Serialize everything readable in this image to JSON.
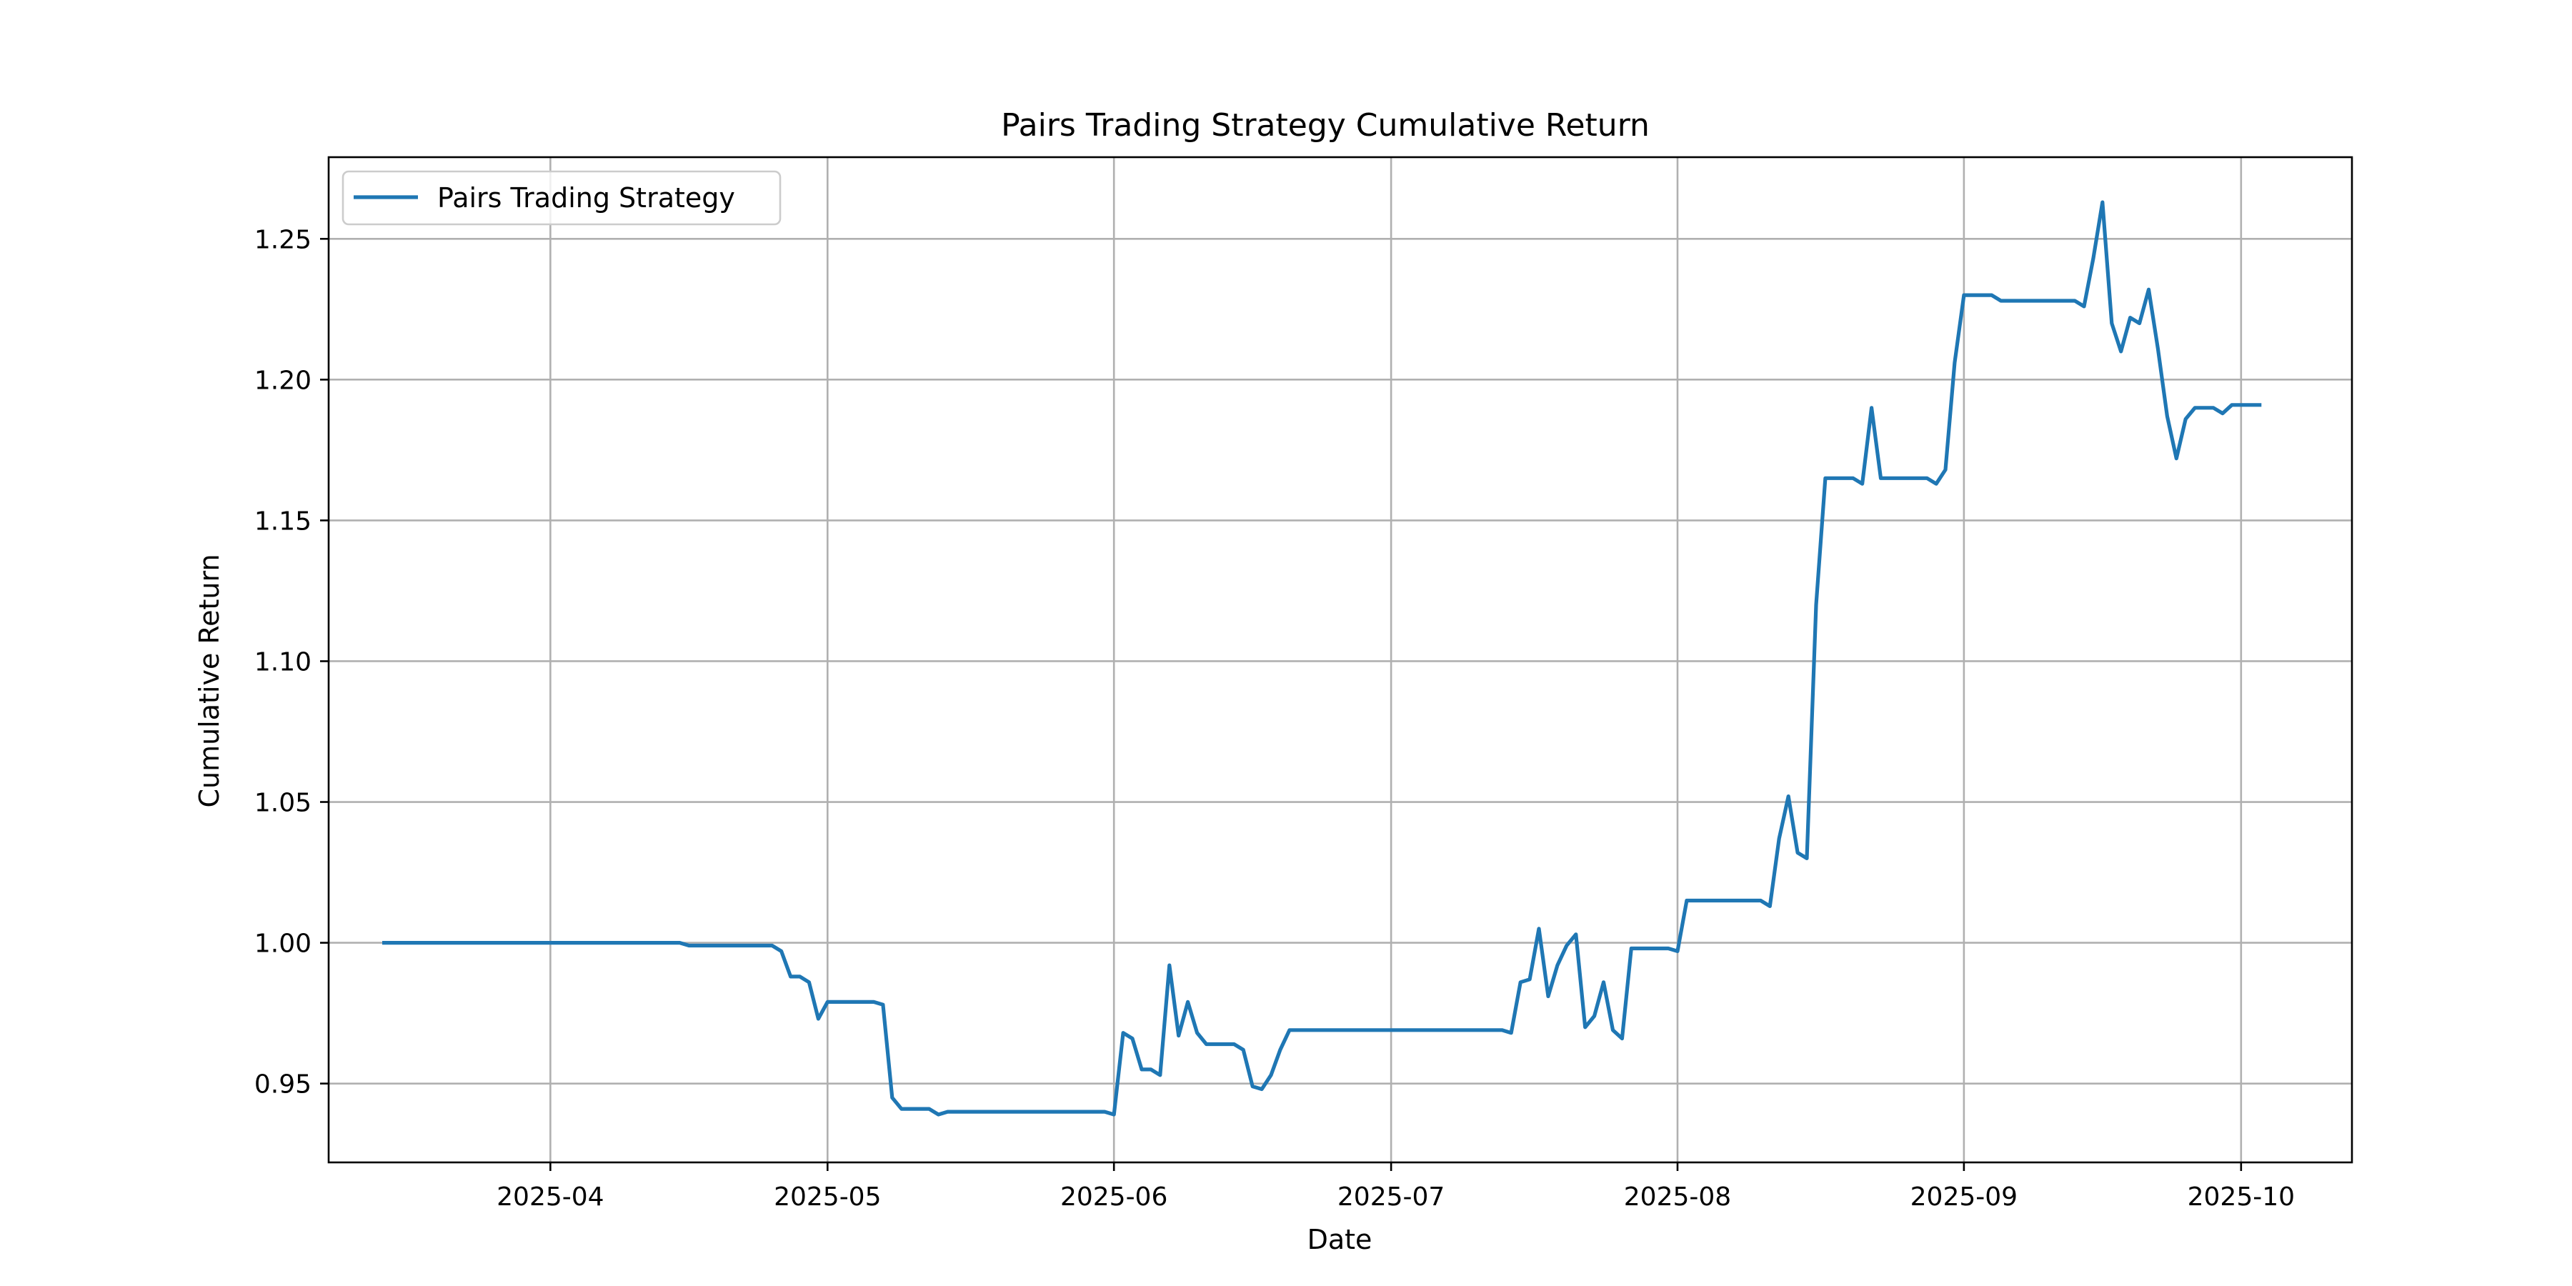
{
  "chart_data": {
    "type": "line",
    "title": "Pairs Trading Strategy Cumulative Return",
    "xlabel": "Date",
    "ylabel": "Cumulative Return",
    "xlim": [
      "2025-03-08",
      "2025-10-13"
    ],
    "ylim": [
      0.922,
      1.279
    ],
    "x_ticks": [
      {
        "date": "2025-04-01",
        "label": "2025-04"
      },
      {
        "date": "2025-05-01",
        "label": "2025-05"
      },
      {
        "date": "2025-06-01",
        "label": "2025-06"
      },
      {
        "date": "2025-07-01",
        "label": "2025-07"
      },
      {
        "date": "2025-08-01",
        "label": "2025-08"
      },
      {
        "date": "2025-09-01",
        "label": "2025-09"
      },
      {
        "date": "2025-10-01",
        "label": "2025-10"
      }
    ],
    "y_ticks": [
      0.95,
      1.0,
      1.05,
      1.1,
      1.15,
      1.2,
      1.25
    ],
    "y_tick_labels": [
      "0.95",
      "1.00",
      "1.05",
      "1.10",
      "1.15",
      "1.20",
      "1.25"
    ],
    "grid": true,
    "legend_position": "upper-left",
    "line_color": "#1f77b4",
    "series": [
      {
        "name": "Pairs Trading Strategy",
        "points": [
          [
            "2025-03-14",
            1.0
          ],
          [
            "2025-03-31",
            1.0
          ],
          [
            "2025-04-15",
            1.0
          ],
          [
            "2025-04-16",
            0.999
          ],
          [
            "2025-04-25",
            0.999
          ],
          [
            "2025-04-26",
            0.997
          ],
          [
            "2025-04-27",
            0.988
          ],
          [
            "2025-04-28",
            0.988
          ],
          [
            "2025-04-29",
            0.986
          ],
          [
            "2025-04-30",
            0.973
          ],
          [
            "2025-05-01",
            0.979
          ],
          [
            "2025-05-06",
            0.979
          ],
          [
            "2025-05-07",
            0.978
          ],
          [
            "2025-05-08",
            0.945
          ],
          [
            "2025-05-09",
            0.941
          ],
          [
            "2025-05-12",
            0.941
          ],
          [
            "2025-05-13",
            0.939
          ],
          [
            "2025-05-14",
            0.94
          ],
          [
            "2025-05-31",
            0.94
          ],
          [
            "2025-06-01",
            0.939
          ],
          [
            "2025-06-02",
            0.968
          ],
          [
            "2025-06-03",
            0.966
          ],
          [
            "2025-06-04",
            0.955
          ],
          [
            "2025-06-05",
            0.955
          ],
          [
            "2025-06-06",
            0.953
          ],
          [
            "2025-06-07",
            0.992
          ],
          [
            "2025-06-08",
            0.967
          ],
          [
            "2025-06-09",
            0.979
          ],
          [
            "2025-06-10",
            0.968
          ],
          [
            "2025-06-11",
            0.964
          ],
          [
            "2025-06-14",
            0.964
          ],
          [
            "2025-06-15",
            0.962
          ],
          [
            "2025-06-16",
            0.949
          ],
          [
            "2025-06-17",
            0.948
          ],
          [
            "2025-06-18",
            0.953
          ],
          [
            "2025-06-19",
            0.962
          ],
          [
            "2025-06-20",
            0.969
          ],
          [
            "2025-07-13",
            0.969
          ],
          [
            "2025-07-14",
            0.968
          ],
          [
            "2025-07-15",
            0.986
          ],
          [
            "2025-07-16",
            0.987
          ],
          [
            "2025-07-17",
            1.005
          ],
          [
            "2025-07-18",
            0.981
          ],
          [
            "2025-07-19",
            0.992
          ],
          [
            "2025-07-20",
            0.999
          ],
          [
            "2025-07-21",
            1.003
          ],
          [
            "2025-07-22",
            0.97
          ],
          [
            "2025-07-23",
            0.974
          ],
          [
            "2025-07-24",
            0.986
          ],
          [
            "2025-07-25",
            0.969
          ],
          [
            "2025-07-26",
            0.966
          ],
          [
            "2025-07-27",
            0.998
          ],
          [
            "2025-07-31",
            0.998
          ],
          [
            "2025-08-01",
            0.997
          ],
          [
            "2025-08-02",
            1.015
          ],
          [
            "2025-08-10",
            1.015
          ],
          [
            "2025-08-11",
            1.013
          ],
          [
            "2025-08-12",
            1.037
          ],
          [
            "2025-08-13",
            1.052
          ],
          [
            "2025-08-14",
            1.032
          ],
          [
            "2025-08-15",
            1.03
          ],
          [
            "2025-08-16",
            1.12
          ],
          [
            "2025-08-17",
            1.165
          ],
          [
            "2025-08-20",
            1.165
          ],
          [
            "2025-08-21",
            1.163
          ],
          [
            "2025-08-22",
            1.19
          ],
          [
            "2025-08-23",
            1.165
          ],
          [
            "2025-08-28",
            1.165
          ],
          [
            "2025-08-29",
            1.163
          ],
          [
            "2025-08-30",
            1.168
          ],
          [
            "2025-08-31",
            1.206
          ],
          [
            "2025-09-01",
            1.23
          ],
          [
            "2025-09-04",
            1.23
          ],
          [
            "2025-09-05",
            1.228
          ],
          [
            "2025-09-13",
            1.228
          ],
          [
            "2025-09-14",
            1.226
          ],
          [
            "2025-09-15",
            1.243
          ],
          [
            "2025-09-16",
            1.263
          ],
          [
            "2025-09-17",
            1.22
          ],
          [
            "2025-09-18",
            1.21
          ],
          [
            "2025-09-19",
            1.222
          ],
          [
            "2025-09-20",
            1.22
          ],
          [
            "2025-09-21",
            1.232
          ],
          [
            "2025-09-22",
            1.211
          ],
          [
            "2025-09-23",
            1.187
          ],
          [
            "2025-09-24",
            1.172
          ],
          [
            "2025-09-25",
            1.186
          ],
          [
            "2025-09-26",
            1.19
          ],
          [
            "2025-09-28",
            1.19
          ],
          [
            "2025-09-29",
            1.188
          ],
          [
            "2025-09-30",
            1.191
          ],
          [
            "2025-10-03",
            1.191
          ]
        ]
      }
    ]
  }
}
